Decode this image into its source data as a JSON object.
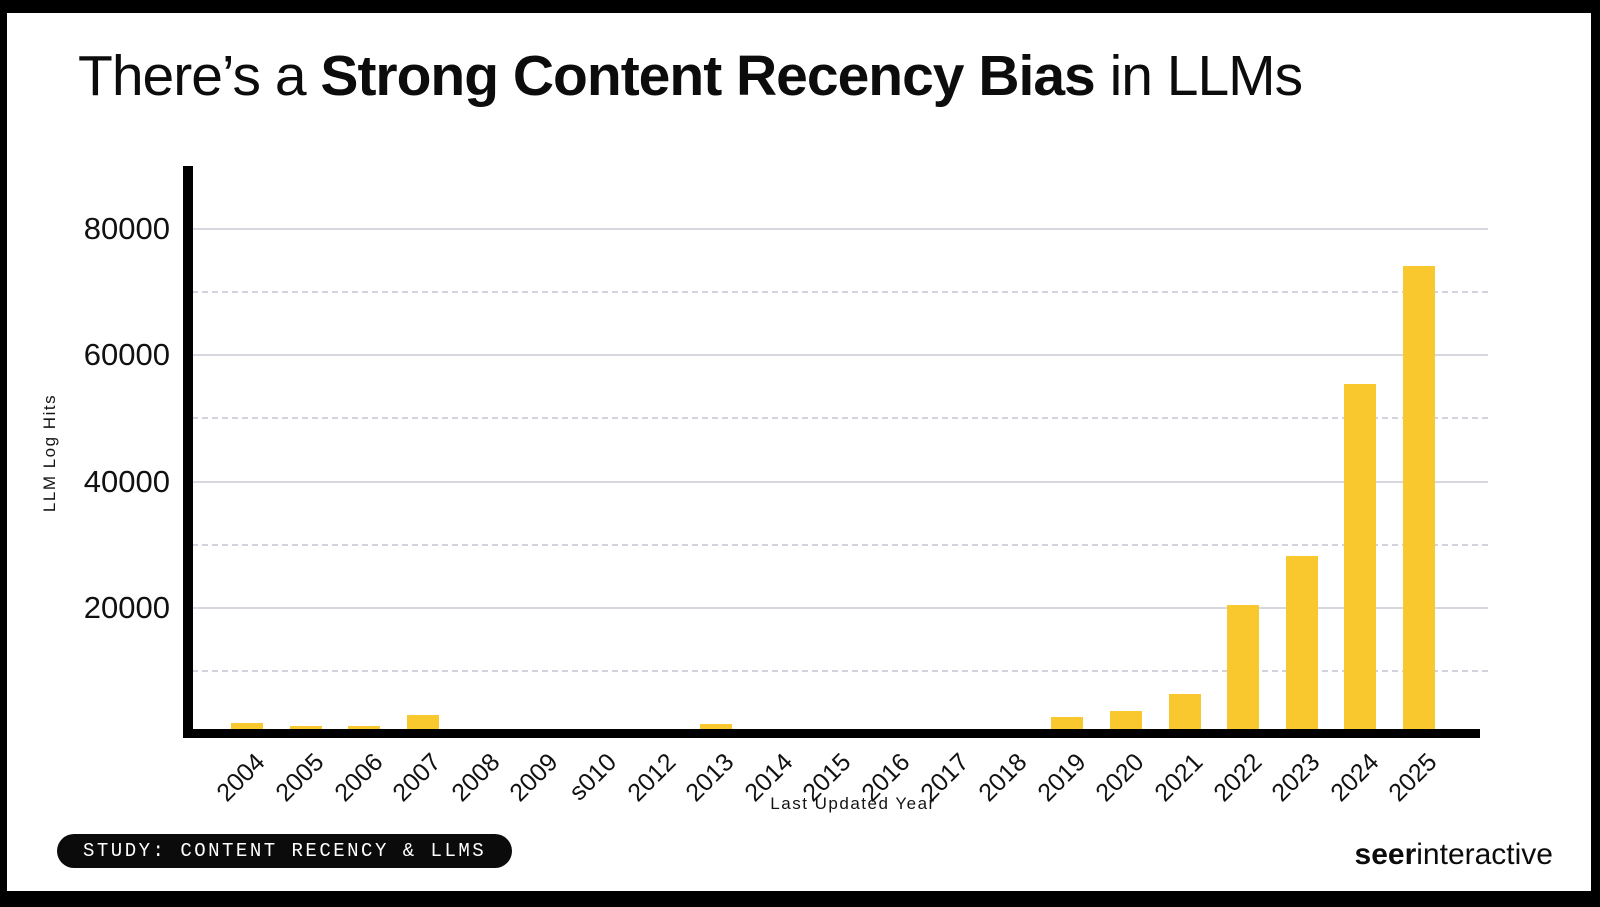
{
  "title": {
    "prefix": "There’s a ",
    "emphasis": "Strong Content Recency Bias",
    "suffix": " in LLMs"
  },
  "footer": {
    "badge_label": "STUDY: CONTENT RECENCY & LLMS",
    "logo_bold": "seer",
    "logo_light": "interactive"
  },
  "chart_data": {
    "type": "bar",
    "title": "There’s a Strong Content Recency Bias in LLMs",
    "xlabel": "Last Updated Year",
    "ylabel": "LLM Log Hits",
    "categories": [
      "2004",
      "2005",
      "2006",
      "2007",
      "2008",
      "2009",
      "s010",
      "2012",
      "2013",
      "2014",
      "2015",
      "2016",
      "2017",
      "2018",
      "2019",
      "2020",
      "2021",
      "2022",
      "2023",
      "2024",
      "2025"
    ],
    "values": [
      1700,
      1200,
      1200,
      3000,
      0,
      0,
      0,
      0,
      1600,
      0,
      0,
      0,
      0,
      0,
      2700,
      3600,
      6300,
      20500,
      28200,
      55500,
      74200
    ],
    "ylim": [
      0,
      90000
    ],
    "yticks_major": [
      20000,
      40000,
      60000,
      80000
    ],
    "yticks_minor": [
      10000,
      30000,
      50000,
      70000
    ],
    "grid": "horizontal only; major ticks solid, minor ticks dashed",
    "legend": "none",
    "bar_color": "#F9C82E",
    "axis_color": "#000000",
    "gridline_color": "#D7D7E0"
  }
}
